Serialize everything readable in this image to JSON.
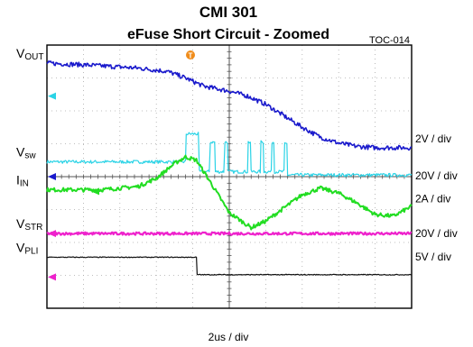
{
  "chart_data": {
    "type": "line",
    "title": "CMI 301",
    "subtitle": "eFuse Short Circuit - Zoomed",
    "figure_id": "TOC-014",
    "time_scale": "2us / div",
    "grid": true,
    "divisions": {
      "x": 10,
      "y": 8
    },
    "trigger_marker": "T",
    "colors": {
      "background": "#ffffff",
      "grid": "#aaaaaa",
      "frame": "#000000"
    },
    "series": [
      {
        "key": "vsw",
        "label_main": "V",
        "label_sub": "sw",
        "scale": "20V / div",
        "color": "#2ad3e6",
        "points": [
          [
            0,
            0.45
          ],
          [
            3.8,
            0.45
          ],
          [
            3.82,
            1.3
          ],
          [
            4.15,
            1.3
          ],
          [
            4.18,
            0.15
          ],
          [
            4.45,
            0.15
          ],
          [
            4.48,
            1.05
          ],
          [
            4.6,
            1.05
          ],
          [
            4.62,
            0.15
          ],
          [
            4.85,
            0.15
          ],
          [
            4.88,
            1.05
          ],
          [
            4.95,
            1.05
          ],
          [
            4.97,
            0.15
          ],
          [
            5.5,
            0.15
          ],
          [
            5.52,
            1.05
          ],
          [
            5.58,
            1.05
          ],
          [
            5.6,
            0.15
          ],
          [
            5.85,
            0.15
          ],
          [
            5.87,
            1.05
          ],
          [
            5.93,
            1.05
          ],
          [
            5.95,
            0.15
          ],
          [
            6.15,
            0.15
          ],
          [
            6.17,
            1.05
          ],
          [
            6.22,
            1.05
          ],
          [
            6.24,
            0.15
          ],
          [
            6.5,
            0.15
          ],
          [
            6.52,
            1.0
          ],
          [
            6.58,
            1.0
          ],
          [
            6.6,
            0.05
          ],
          [
            10,
            0.05
          ]
        ]
      },
      {
        "key": "vout",
        "label_main": "V",
        "label_sub": "OUT",
        "scale": "2V / div",
        "color": "#1a1acc",
        "points": [
          [
            0,
            3.45
          ],
          [
            1,
            3.4
          ],
          [
            2.5,
            3.3
          ],
          [
            3.3,
            3.2
          ],
          [
            3.8,
            3.0
          ],
          [
            4.3,
            2.75
          ],
          [
            5.0,
            2.6
          ],
          [
            5.5,
            2.45
          ],
          [
            6.0,
            2.2
          ],
          [
            6.5,
            1.85
          ],
          [
            7.0,
            1.5
          ],
          [
            7.5,
            1.2
          ],
          [
            8.0,
            1.02
          ],
          [
            8.5,
            0.92
          ],
          [
            9.0,
            0.88
          ],
          [
            10,
            0.88
          ]
        ]
      },
      {
        "key": "iin",
        "label_main": "I",
        "label_sub": "IN",
        "scale": "2A / div",
        "color": "#22dd22",
        "points": [
          [
            0,
            -0.4
          ],
          [
            1.5,
            -0.4
          ],
          [
            2.5,
            -0.3
          ],
          [
            3.0,
            -0.05
          ],
          [
            3.5,
            0.4
          ],
          [
            3.8,
            0.6
          ],
          [
            4.1,
            0.5
          ],
          [
            4.5,
            -0.2
          ],
          [
            5.0,
            -1.1
          ],
          [
            5.6,
            -1.55
          ],
          [
            6.0,
            -1.35
          ],
          [
            6.5,
            -0.95
          ],
          [
            7.0,
            -0.55
          ],
          [
            7.5,
            -0.35
          ],
          [
            8.0,
            -0.5
          ],
          [
            8.5,
            -0.8
          ],
          [
            9.0,
            -1.15
          ],
          [
            9.5,
            -1.2
          ],
          [
            10,
            -0.9
          ]
        ]
      },
      {
        "key": "vstr",
        "label_main": "V",
        "label_sub": "STR",
        "scale": "20V / div",
        "color": "#ee22cc",
        "points": [
          [
            0,
            -1.73
          ],
          [
            10,
            -1.73
          ]
        ]
      },
      {
        "key": "vpli",
        "label_main": "V",
        "label_sub": "PLI",
        "scale": "5V / div",
        "color": "#111111",
        "points": [
          [
            0,
            -2.45
          ],
          [
            4.1,
            -2.45
          ],
          [
            4.12,
            -2.98
          ],
          [
            10,
            -2.98
          ]
        ]
      }
    ]
  }
}
